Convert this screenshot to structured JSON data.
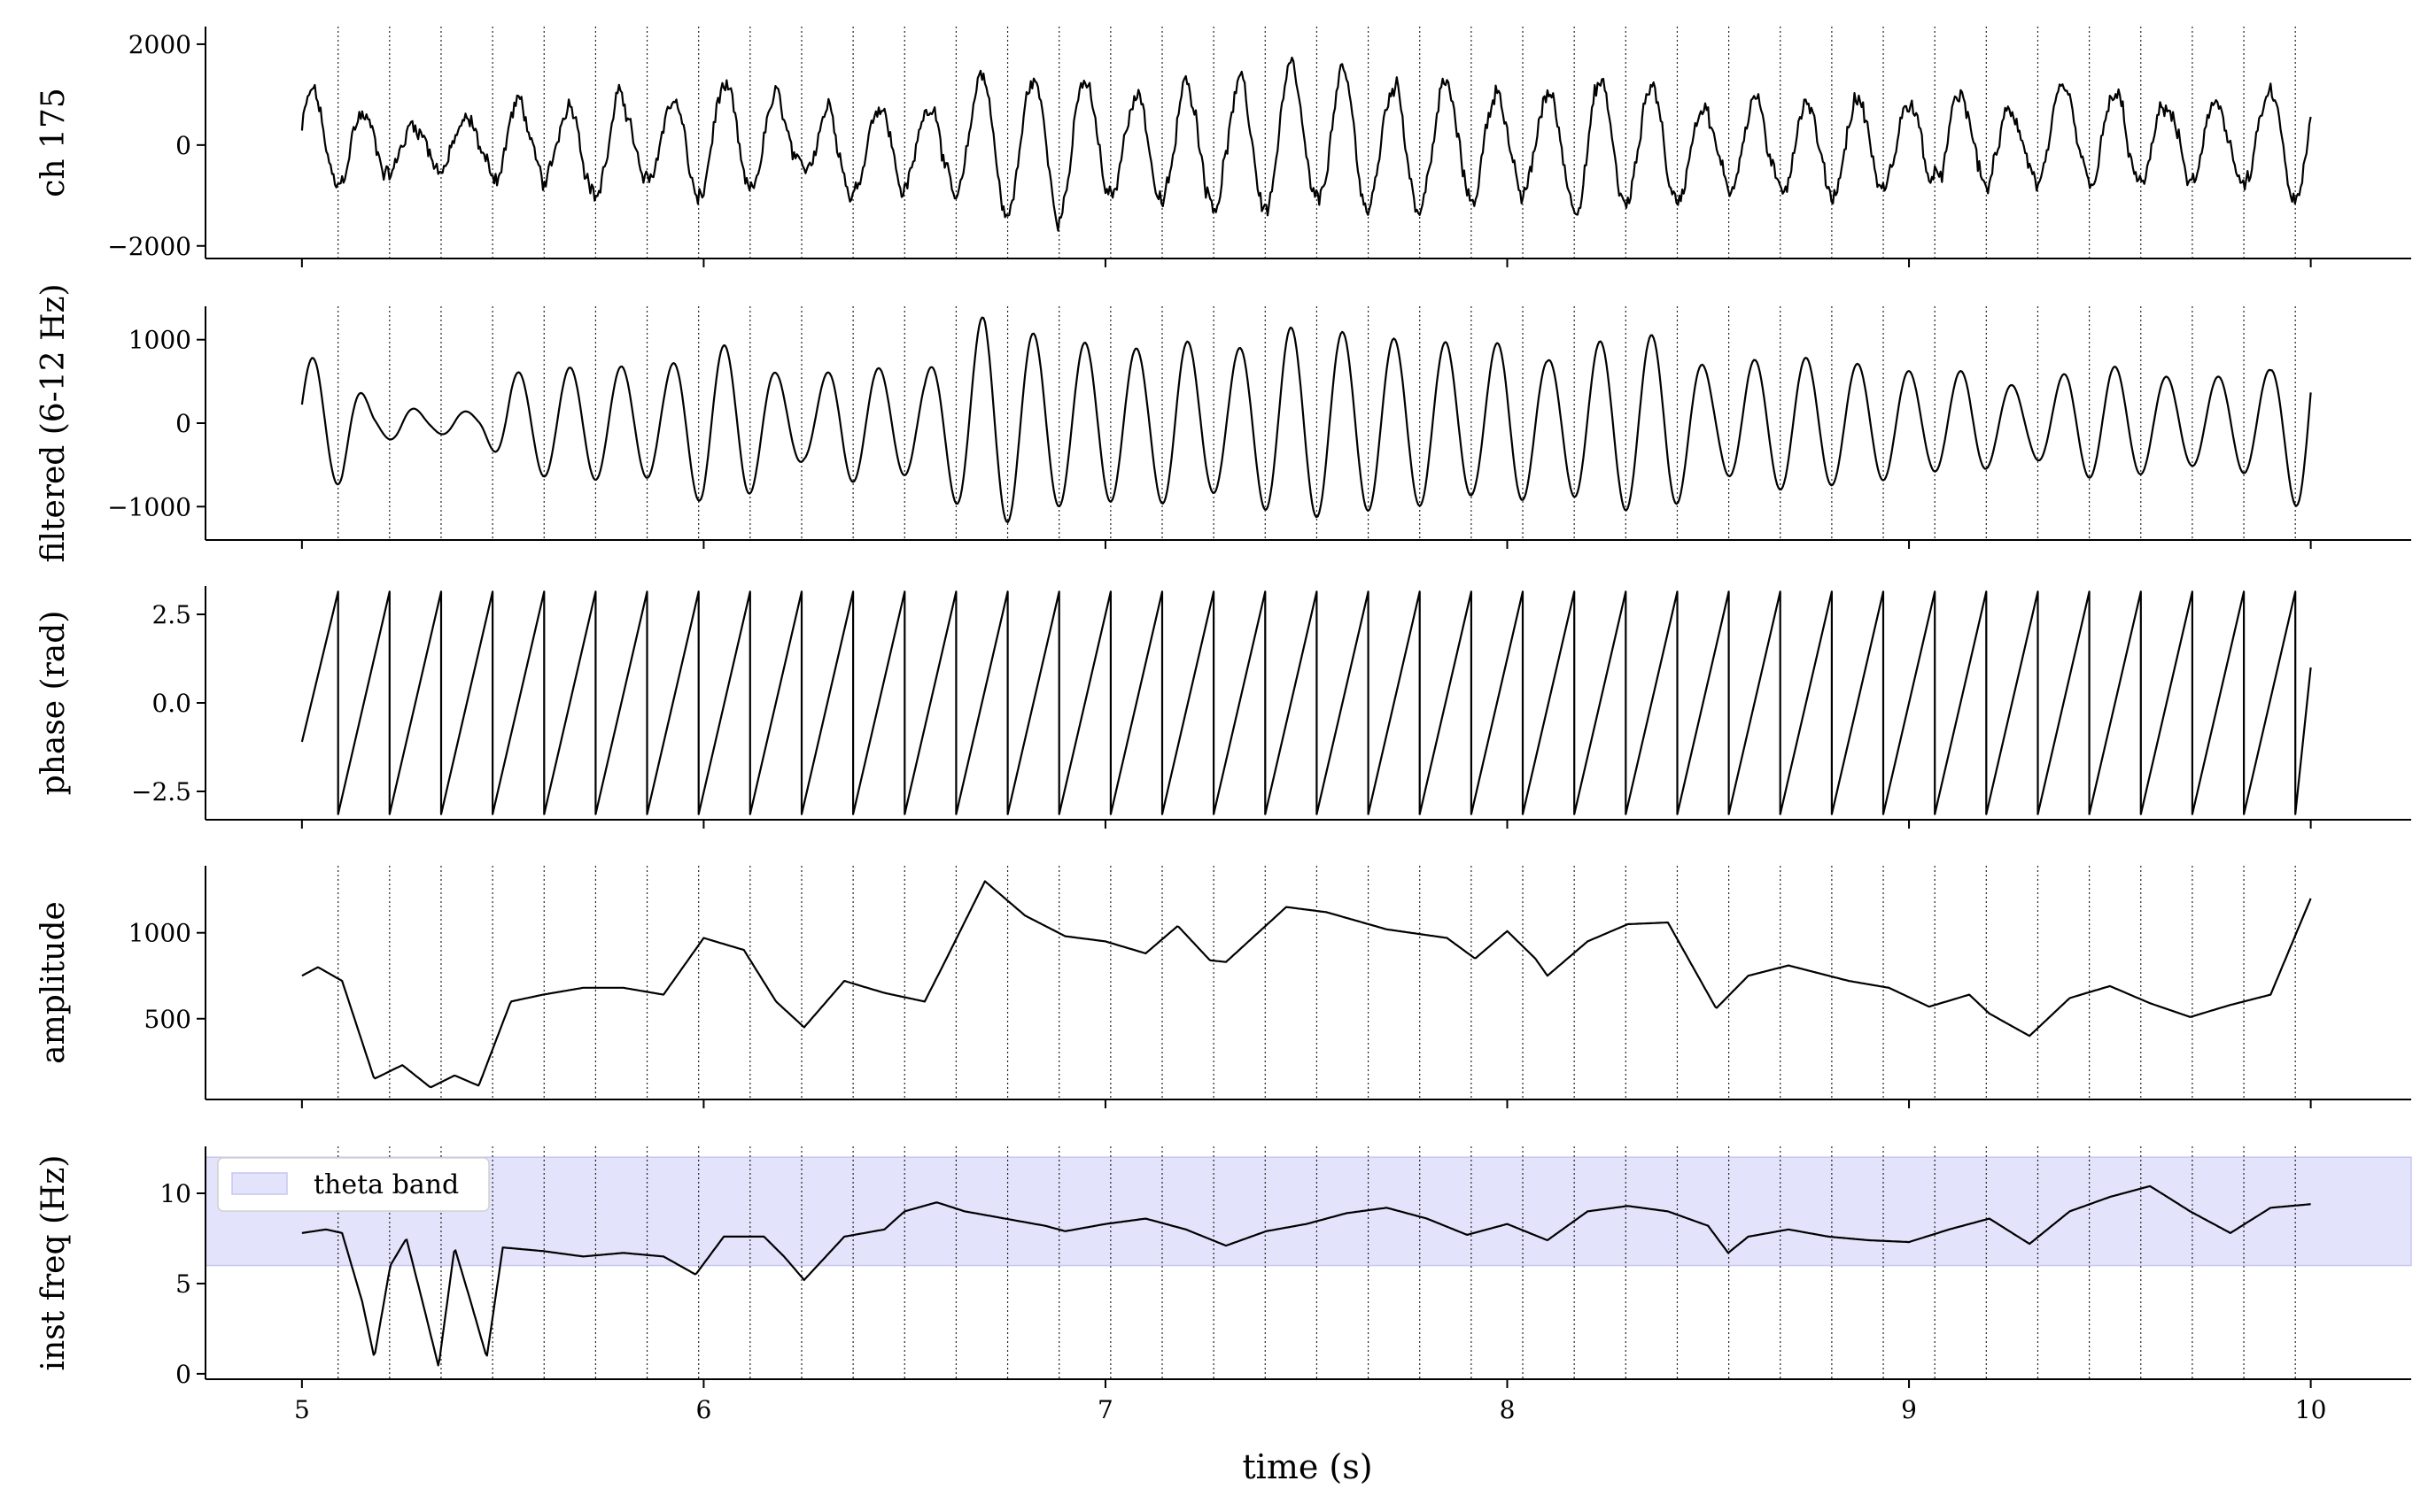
{
  "chart_data": [
    {
      "type": "line",
      "ylabel": "ch 175",
      "xlim": [
        4.76,
        10.25
      ],
      "ylim": [
        -2250,
        2350
      ],
      "yticks": [
        -2000,
        0,
        2000
      ],
      "ytick_labels": [
        "−2000",
        "0",
        "2000"
      ],
      "series": [
        {
          "kind": "raw_lfp",
          "x_range": [
            5.0,
            10.0
          ],
          "theta_hz": 7.8,
          "amplitude_uv": 1100,
          "noise": true
        }
      ],
      "vlines": "troughs",
      "grid": false
    },
    {
      "type": "line",
      "ylabel": "filtered (6-12 Hz)",
      "xlim": [
        4.76,
        10.25
      ],
      "ylim": [
        -1400,
        1400
      ],
      "yticks": [
        -1000,
        0,
        1000
      ],
      "ytick_labels": [
        "−1000",
        "0",
        "1000"
      ],
      "series": [
        {
          "kind": "bandpass_signal",
          "x_range": [
            5.0,
            10.0
          ]
        }
      ],
      "vlines": "troughs",
      "grid": false
    },
    {
      "type": "line",
      "ylabel": "phase (rad)",
      "xlim": [
        4.76,
        10.25
      ],
      "ylim": [
        -3.3,
        3.3
      ],
      "yticks": [
        -2.5,
        0.0,
        2.5
      ],
      "ytick_labels": [
        "−2.5",
        "0.0",
        "2.5"
      ],
      "series": [
        {
          "kind": "phase_sawtooth",
          "x_range": [
            5.0,
            10.0
          ],
          "range_rad": [
            -3.14159,
            3.14159
          ],
          "start": -1.1,
          "end": 1.0
        }
      ],
      "vlines": false,
      "grid": false
    },
    {
      "type": "line",
      "ylabel": "amplitude",
      "xlim": [
        4.76,
        10.25
      ],
      "ylim": [
        30,
        1390
      ],
      "yticks": [
        500,
        1000
      ],
      "ytick_labels": [
        "500",
        "1000"
      ],
      "series": [
        {
          "kind": "envelope",
          "x": [
            5.0,
            5.04,
            5.1,
            5.18,
            5.25,
            5.32,
            5.38,
            5.44,
            5.52,
            5.6,
            5.7,
            5.8,
            5.9,
            6.0,
            6.1,
            6.18,
            6.25,
            6.35,
            6.45,
            6.55,
            6.6,
            6.7,
            6.8,
            6.9,
            7.0,
            7.1,
            7.18,
            7.26,
            7.3,
            7.45,
            7.55,
            7.7,
            7.85,
            7.92,
            8.0,
            8.07,
            8.1,
            8.2,
            8.3,
            8.4,
            8.52,
            8.6,
            8.7,
            8.85,
            8.95,
            9.05,
            9.15,
            9.2,
            9.3,
            9.4,
            9.5,
            9.6,
            9.7,
            9.8,
            9.9,
            10.0
          ],
          "y": [
            750,
            800,
            720,
            150,
            230,
            100,
            170,
            110,
            600,
            640,
            680,
            680,
            640,
            970,
            900,
            600,
            450,
            720,
            650,
            600,
            830,
            1300,
            1100,
            980,
            950,
            880,
            1040,
            840,
            830,
            1150,
            1120,
            1020,
            970,
            850,
            1010,
            850,
            750,
            950,
            1050,
            1060,
            560,
            750,
            810,
            720,
            680,
            570,
            640,
            530,
            400,
            620,
            690,
            590,
            510,
            580,
            640,
            1200
          ]
        }
      ],
      "vlines": "troughs",
      "grid": false
    },
    {
      "type": "line",
      "ylabel": "inst freq (Hz)",
      "xlabel": "time (s)",
      "xlim": [
        4.76,
        10.25
      ],
      "ylim": [
        -0.3,
        12.6
      ],
      "yticks": [
        0,
        5,
        10
      ],
      "ytick_labels": [
        "0",
        "5",
        "10"
      ],
      "xticks": [
        5,
        6,
        7,
        8,
        9,
        10
      ],
      "xtick_labels": [
        "5",
        "6",
        "7",
        "8",
        "9",
        "10"
      ],
      "band": {
        "label": "theta band",
        "y0": 6,
        "y1": 12,
        "color": "#e3e3fb",
        "edge": "#c6c6f2"
      },
      "series": [
        {
          "kind": "inst_frequency",
          "x": [
            5.0,
            5.06,
            5.1,
            5.15,
            5.18,
            5.22,
            5.26,
            5.3,
            5.34,
            5.38,
            5.42,
            5.46,
            5.5,
            5.6,
            5.7,
            5.8,
            5.9,
            5.98,
            6.05,
            6.15,
            6.2,
            6.25,
            6.35,
            6.45,
            6.5,
            6.58,
            6.65,
            6.75,
            6.85,
            6.9,
            7.0,
            7.1,
            7.2,
            7.3,
            7.4,
            7.5,
            7.6,
            7.7,
            7.8,
            7.9,
            8.0,
            8.1,
            8.2,
            8.3,
            8.4,
            8.5,
            8.55,
            8.6,
            8.7,
            8.8,
            8.9,
            9.0,
            9.1,
            9.2,
            9.3,
            9.35,
            9.4,
            9.5,
            9.6,
            9.7,
            9.8,
            9.9,
            10.0
          ],
          "y": [
            7.8,
            8.0,
            7.8,
            4.0,
            0.9,
            6.0,
            7.5,
            4.0,
            0.4,
            7.0,
            4.0,
            0.9,
            7.0,
            6.8,
            6.5,
            6.7,
            6.5,
            5.5,
            7.6,
            7.6,
            6.5,
            5.2,
            7.6,
            8.0,
            9.0,
            9.5,
            9.0,
            8.6,
            8.2,
            7.9,
            8.3,
            8.6,
            8.0,
            7.1,
            7.9,
            8.3,
            8.9,
            9.2,
            8.6,
            7.7,
            8.3,
            7.4,
            9.0,
            9.3,
            9.0,
            8.2,
            6.7,
            7.6,
            8.0,
            7.6,
            7.4,
            7.3,
            8.0,
            8.6,
            7.2,
            8.1,
            9.0,
            9.8,
            10.4,
            9.0,
            7.8,
            9.2,
            9.4
          ]
        }
      ],
      "vlines": "troughs",
      "grid": false
    }
  ]
}
